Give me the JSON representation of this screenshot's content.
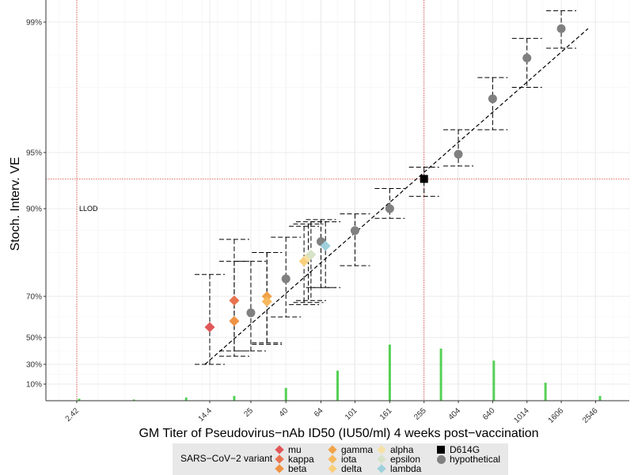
{
  "chart_data": {
    "type": "scatter",
    "title": "",
    "xlabel": "GM Titer of Pseudovirus−nAb ID50 (IU50/ml) 4 weeks post−vaccination",
    "ylabel": "Stoch. Interv. VE",
    "x_scale": "log",
    "xlim": [
      1.6,
      4000
    ],
    "x_ticks": [
      {
        "value": 2.42,
        "label": "2.42"
      },
      {
        "value": 14.4,
        "label": "14.4"
      },
      {
        "value": 25,
        "label": "25"
      },
      {
        "value": 40,
        "label": "40"
      },
      {
        "value": 64,
        "label": "64"
      },
      {
        "value": 101,
        "label": "101"
      },
      {
        "value": 161,
        "label": "161"
      },
      {
        "value": 255,
        "label": "255"
      },
      {
        "value": 404,
        "label": "404"
      },
      {
        "value": 640,
        "label": "640"
      },
      {
        "value": 1014,
        "label": "1014"
      },
      {
        "value": 1606,
        "label": "1606"
      },
      {
        "value": 2546,
        "label": "2546"
      }
    ],
    "y_ticks": [
      {
        "value": 0.1,
        "label": "10%"
      },
      {
        "value": 0.3,
        "label": "30%"
      },
      {
        "value": 0.5,
        "label": "50%"
      },
      {
        "value": 0.7,
        "label": "70%"
      },
      {
        "value": 0.9,
        "label": "90%"
      },
      {
        "value": 0.95,
        "label": "95%"
      },
      {
        "value": 0.99,
        "label": "99%"
      }
    ],
    "grid": true,
    "reference_lines": {
      "llod_x": 2.42,
      "d614g_x": 255,
      "d614g_ve": 0.9265
    },
    "annotations": [
      {
        "text": "LLOD",
        "x": 2.42,
        "y": 0.9
      }
    ],
    "fit_line": {
      "x": [
        13.5,
        2300
      ],
      "y": [
        0.3,
        0.988
      ]
    },
    "points": [
      {
        "variant": "mu",
        "x": 14.4,
        "y": 0.55,
        "lo": 0.3,
        "hi": 0.75
      },
      {
        "variant": "kappa",
        "x": 20,
        "y": 0.68,
        "lo": 0.4,
        "hi": 0.83
      },
      {
        "variant": "beta",
        "x": 20,
        "y": 0.58,
        "lo": 0.36,
        "hi": 0.78
      },
      {
        "variant": "gamma",
        "x": 31,
        "y": 0.7,
        "lo": 0.45,
        "hi": 0.8
      },
      {
        "variant": "iota",
        "x": 31,
        "y": 0.675,
        "lo": 0.46,
        "hi": 0.8
      },
      {
        "variant": "hypothetical",
        "x": 25,
        "y": 0.62,
        "lo": 0.4,
        "hi": 0.78
      },
      {
        "variant": "hypothetical",
        "x": 40,
        "y": 0.74,
        "lo": 0.6,
        "hi": 0.835
      },
      {
        "variant": "delta",
        "x": 51,
        "y": 0.78,
        "lo": 0.66,
        "hi": 0.86
      },
      {
        "variant": "alpha",
        "x": 54,
        "y": 0.79,
        "lo": 0.67,
        "hi": 0.865
      },
      {
        "variant": "epsilon",
        "x": 56,
        "y": 0.795,
        "lo": 0.68,
        "hi": 0.87
      },
      {
        "variant": "hypothetical",
        "x": 64,
        "y": 0.825,
        "lo": 0.72,
        "hi": 0.875
      },
      {
        "variant": "lambda",
        "x": 68,
        "y": 0.815,
        "lo": 0.72,
        "hi": 0.87
      },
      {
        "variant": "hypothetical",
        "x": 101,
        "y": 0.85,
        "lo": 0.77,
        "hi": 0.888
      },
      {
        "variant": "hypothetical",
        "x": 161,
        "y": 0.9,
        "lo": 0.878,
        "hi": 0.918
      },
      {
        "variant": "D614G",
        "x": 255,
        "y": 0.9265,
        "lo": 0.911,
        "hi": 0.937
      },
      {
        "variant": "hypothetical",
        "x": 404,
        "y": 0.9485,
        "lo": 0.938,
        "hi": 0.957
      },
      {
        "variant": "hypothetical",
        "x": 640,
        "y": 0.9665,
        "lo": 0.957,
        "hi": 0.973
      },
      {
        "variant": "hypothetical",
        "x": 1014,
        "y": 0.979,
        "lo": 0.97,
        "hi": 0.985
      },
      {
        "variant": "hypothetical",
        "x": 1606,
        "y": 0.988,
        "lo": 0.982,
        "hi": 0.9935
      }
    ],
    "histogram": {
      "color": "#44cc44",
      "bars": [
        {
          "x": 2.5,
          "height": 0.005
        },
        {
          "x": 5.2,
          "height": 0.002
        },
        {
          "x": 10.5,
          "height": 0.008
        },
        {
          "x": 20,
          "height": 0.012
        },
        {
          "x": 40,
          "height": 0.032
        },
        {
          "x": 80,
          "height": 0.075
        },
        {
          "x": 161,
          "height": 0.14
        },
        {
          "x": 320,
          "height": 0.13
        },
        {
          "x": 650,
          "height": 0.1
        },
        {
          "x": 1300,
          "height": 0.045
        },
        {
          "x": 2700,
          "height": 0.012
        }
      ]
    },
    "legend": {
      "title": "SARS−CoV−2 variant",
      "placement": "bottom",
      "columns": [
        [
          {
            "label": "mu",
            "color": "#e15759",
            "shape": "diamond"
          },
          {
            "label": "kappa",
            "color": "#e8734f",
            "shape": "diamond"
          },
          {
            "label": "beta",
            "color": "#ef9243",
            "shape": "diamond"
          }
        ],
        [
          {
            "label": "gamma",
            "color": "#f0a34a",
            "shape": "diamond"
          },
          {
            "label": "iota",
            "color": "#f6b85c",
            "shape": "diamond"
          },
          {
            "label": "delta",
            "color": "#f9cf7d",
            "shape": "diamond"
          }
        ],
        [
          {
            "label": "alpha",
            "color": "#f6e1a6",
            "shape": "diamond"
          },
          {
            "label": "epsilon",
            "color": "#d6e3c8",
            "shape": "diamond"
          },
          {
            "label": "lambda",
            "color": "#9ed0dc",
            "shape": "diamond"
          }
        ],
        [
          {
            "label": "D614G",
            "color": "#000000",
            "shape": "square"
          },
          {
            "label": "hypothetical",
            "color": "#808080",
            "shape": "circle"
          }
        ]
      ]
    }
  }
}
